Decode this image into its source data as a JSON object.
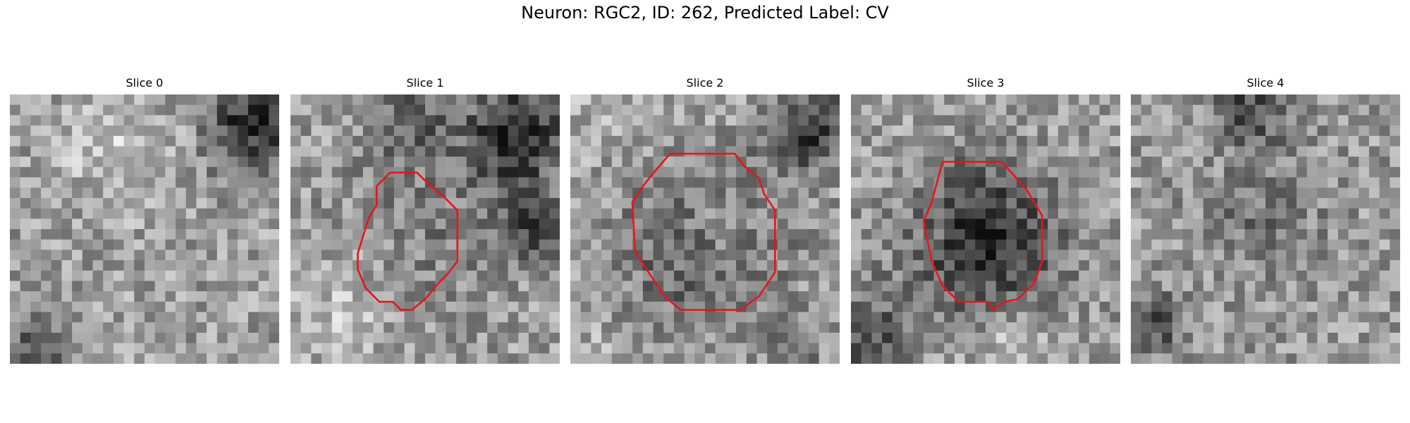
{
  "figure": {
    "title": "Neuron: RGC2, ID: 262, Predicted Label: CV"
  },
  "panels": [
    {
      "title": "Slice 0",
      "has_contour": false,
      "contour_color": "#e8141c"
    },
    {
      "title": "Slice 1",
      "has_contour": true,
      "contour_color": "#e8141c"
    },
    {
      "title": "Slice 2",
      "has_contour": true,
      "contour_color": "#e8141c"
    },
    {
      "title": "Slice 3",
      "has_contour": true,
      "contour_color": "#e8141c"
    },
    {
      "title": "Slice 4",
      "has_contour": false,
      "contour_color": "#e8141c"
    }
  ],
  "colormap": "gray"
}
